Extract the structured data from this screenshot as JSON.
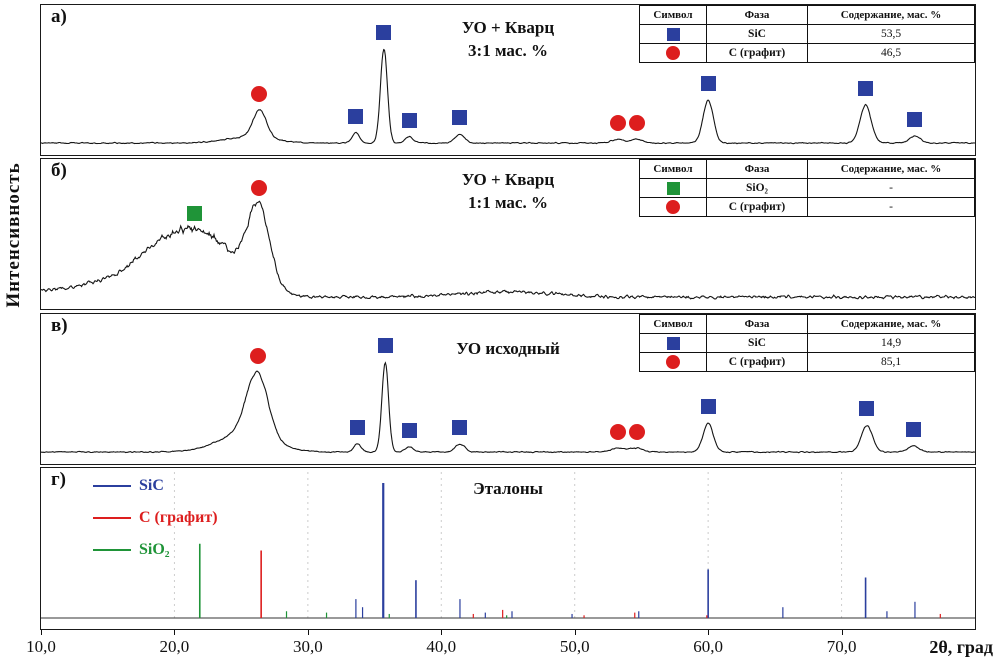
{
  "chart_data": {
    "type": "line",
    "title": "",
    "xlabel": "2θ, град",
    "ylabel": "Интенсивность",
    "x_range": [
      10,
      80
    ],
    "x_ticks": [
      10,
      20,
      30,
      40,
      50,
      60,
      70
    ],
    "x_tick_labels": [
      "10,0",
      "20,0",
      "30,0",
      "40,0",
      "50,0",
      "60,0",
      "70,0"
    ],
    "series_colors": {
      "sic": "#2b3f9e",
      "graphite": "#dd1e1e",
      "sio2": "#1f9438"
    },
    "trace_color": "#151515",
    "panels": [
      {
        "id": "a",
        "label": "а)",
        "title_lines": [
          "УО + Кварц",
          "3:1 мас. %"
        ],
        "table": {
          "headers": [
            "Символ",
            "Фаза",
            "Содержание, мас. %"
          ],
          "rows": [
            {
              "symbol": "square",
              "series": "sic",
              "phase": "SiC",
              "content": "53,5"
            },
            {
              "symbol": "circle",
              "series": "graphite",
              "phase": "С (графит)",
              "content": "46,5"
            }
          ]
        },
        "noise": 1.6,
        "seed": 7,
        "peaks": [
          {
            "x": 25.6,
            "h": 0.06,
            "w": 1.8
          },
          {
            "x": 26.4,
            "h": 0.27,
            "w": 0.5
          },
          {
            "x": 33.6,
            "h": 0.1,
            "w": 0.28
          },
          {
            "x": 35.7,
            "h": 0.92,
            "w": 0.26
          },
          {
            "x": 37.6,
            "h": 0.06,
            "w": 0.3
          },
          {
            "x": 41.4,
            "h": 0.09,
            "w": 0.35
          },
          {
            "x": 53.2,
            "h": 0.035,
            "w": 0.45
          },
          {
            "x": 54.6,
            "h": 0.035,
            "w": 0.45
          },
          {
            "x": 60.0,
            "h": 0.42,
            "w": 0.38
          },
          {
            "x": 71.8,
            "h": 0.37,
            "w": 0.42
          },
          {
            "x": 75.5,
            "h": 0.07,
            "w": 0.4
          }
        ],
        "markers": [
          {
            "shape": "circle",
            "series": "graphite",
            "x": 26.3
          },
          {
            "shape": "square",
            "series": "sic",
            "x": 33.6
          },
          {
            "shape": "square",
            "series": "sic",
            "x": 35.7
          },
          {
            "shape": "square",
            "series": "sic",
            "x": 37.6
          },
          {
            "shape": "square",
            "series": "sic",
            "x": 41.4
          },
          {
            "shape": "circle",
            "series": "graphite",
            "x": 53.2
          },
          {
            "shape": "circle",
            "series": "graphite",
            "x": 54.6
          },
          {
            "shape": "square",
            "series": "sic",
            "x": 60.0
          },
          {
            "shape": "square",
            "series": "sic",
            "x": 71.8
          },
          {
            "shape": "square",
            "series": "sic",
            "x": 75.5
          }
        ]
      },
      {
        "id": "b",
        "label": "б)",
        "title_lines": [
          "УО + Кварц",
          "1:1 мас. %"
        ],
        "table": {
          "headers": [
            "Символ",
            "Фаза",
            "Содержание, мас. %"
          ],
          "rows": [
            {
              "symbol": "square",
              "series": "sio2",
              "phase": "SiO₂",
              "content": "-"
            },
            {
              "symbol": "circle",
              "series": "graphite",
              "phase": "С (графит)",
              "content": "-"
            }
          ]
        },
        "noise": 4.5,
        "seed": 23,
        "peaks": [
          {
            "x": 14.0,
            "h": 0.1,
            "w": 4.0
          },
          {
            "x": 20.8,
            "h": 0.62,
            "w": 3.0
          },
          {
            "x": 23.5,
            "h": 0.1,
            "w": 1.5
          },
          {
            "x": 26.3,
            "h": 0.78,
            "w": 0.85
          },
          {
            "x": 45.0,
            "h": 0.05,
            "w": 3.5
          }
        ],
        "markers": [
          {
            "shape": "square",
            "series": "sio2",
            "x": 21.5
          },
          {
            "shape": "circle",
            "series": "graphite",
            "x": 26.3
          }
        ]
      },
      {
        "id": "v",
        "label": "в)",
        "title_lines": [
          "УО исходный"
        ],
        "table": {
          "headers": [
            "Символ",
            "Фаза",
            "Содержание, мас. %"
          ],
          "rows": [
            {
              "symbol": "square",
              "series": "sic",
              "phase": "SiC",
              "content": "14,9"
            },
            {
              "symbol": "circle",
              "series": "graphite",
              "phase": "С (графит)",
              "content": "85,1"
            }
          ]
        },
        "noise": 1.6,
        "seed": 41,
        "peaks": [
          {
            "x": 25.3,
            "h": 0.18,
            "w": 2.0
          },
          {
            "x": 26.2,
            "h": 0.62,
            "w": 0.8
          },
          {
            "x": 33.7,
            "h": 0.08,
            "w": 0.28
          },
          {
            "x": 35.8,
            "h": 0.88,
            "w": 0.25
          },
          {
            "x": 37.6,
            "h": 0.05,
            "w": 0.3
          },
          {
            "x": 41.4,
            "h": 0.08,
            "w": 0.35
          },
          {
            "x": 53.2,
            "h": 0.04,
            "w": 0.5
          },
          {
            "x": 54.6,
            "h": 0.04,
            "w": 0.5
          },
          {
            "x": 60.0,
            "h": 0.28,
            "w": 0.38
          },
          {
            "x": 71.9,
            "h": 0.26,
            "w": 0.42
          },
          {
            "x": 75.4,
            "h": 0.06,
            "w": 0.4
          }
        ],
        "markers": [
          {
            "shape": "circle",
            "series": "graphite",
            "x": 26.2
          },
          {
            "shape": "square",
            "series": "sic",
            "x": 33.7
          },
          {
            "shape": "square",
            "series": "sic",
            "x": 35.8
          },
          {
            "shape": "square",
            "series": "sic",
            "x": 37.6
          },
          {
            "shape": "square",
            "series": "sic",
            "x": 41.4
          },
          {
            "shape": "circle",
            "series": "graphite",
            "x": 53.2
          },
          {
            "shape": "circle",
            "series": "graphite",
            "x": 54.6
          },
          {
            "shape": "square",
            "series": "sic",
            "x": 60.0
          },
          {
            "shape": "square",
            "series": "sic",
            "x": 71.9
          },
          {
            "shape": "square",
            "series": "sic",
            "x": 75.4
          }
        ]
      },
      {
        "id": "g",
        "label": "г)",
        "title_lines": [
          "Эталоны"
        ],
        "legend": [
          {
            "label": "SiC",
            "series": "sic"
          },
          {
            "label": "С (графит)",
            "series": "graphite"
          },
          {
            "label": "SiO₂",
            "series": "sio2"
          }
        ],
        "series": [
          {
            "name": "SiC",
            "key": "sic",
            "sticks": [
              [
                33.6,
                0.14
              ],
              [
                34.1,
                0.08
              ],
              [
                35.65,
                1.0
              ],
              [
                38.1,
                0.28
              ],
              [
                41.4,
                0.14
              ],
              [
                43.3,
                0.04
              ],
              [
                45.3,
                0.05
              ],
              [
                49.8,
                0.03
              ],
              [
                54.8,
                0.05
              ],
              [
                60.0,
                0.36
              ],
              [
                65.6,
                0.08
              ],
              [
                71.8,
                0.3
              ],
              [
                73.4,
                0.05
              ],
              [
                75.5,
                0.12
              ]
            ]
          },
          {
            "name": "С (графит)",
            "key": "graphite",
            "sticks": [
              [
                26.5,
                0.5
              ],
              [
                42.4,
                0.03
              ],
              [
                44.6,
                0.06
              ],
              [
                50.7,
                0.02
              ],
              [
                54.5,
                0.04
              ],
              [
                59.9,
                0.02
              ],
              [
                77.4,
                0.03
              ]
            ]
          },
          {
            "name": "SiO₂",
            "key": "sio2",
            "sticks": [
              [
                21.9,
                0.55
              ],
              [
                28.4,
                0.05
              ],
              [
                31.4,
                0.04
              ],
              [
                36.1,
                0.03
              ],
              [
                44.9,
                0.02
              ]
            ]
          }
        ]
      }
    ]
  }
}
